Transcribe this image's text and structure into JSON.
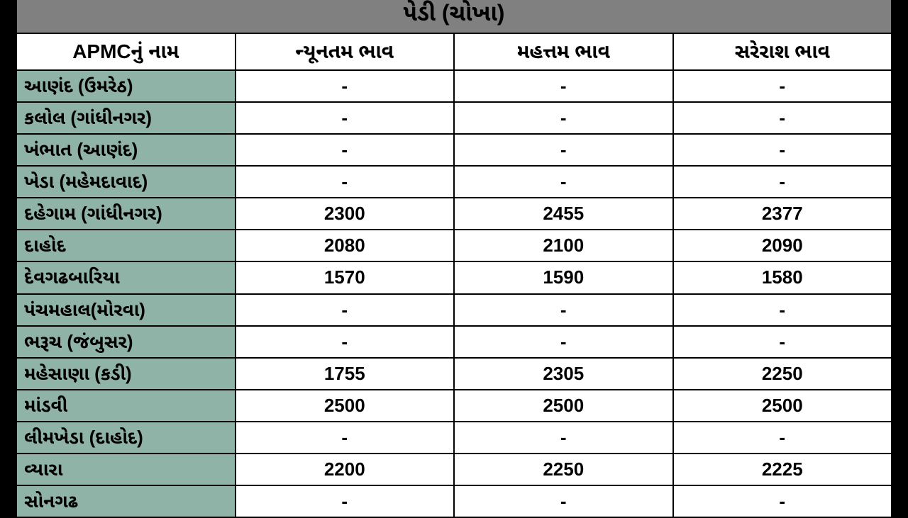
{
  "table": {
    "title": "પેડી (ચોખા)",
    "columns": [
      "APMCનું નામ",
      "ન્યૂનતમ ભાવ",
      "મહત્તમ ભાવ",
      "સરેરાશ ભાવ"
    ],
    "rows": [
      {
        "name": "આણંદ (ઉમરેઠ)",
        "min": "-",
        "max": "-",
        "avg": "-"
      },
      {
        "name": "કલોલ  (ગાંધીનગર)",
        "min": "-",
        "max": "-",
        "avg": "-"
      },
      {
        "name": "ખંભાત (આણંદ)",
        "min": "-",
        "max": "-",
        "avg": "-"
      },
      {
        "name": "ખેડા (મહેમદાવાદ)",
        "min": "-",
        "max": "-",
        "avg": "-"
      },
      {
        "name": "દહેગામ (ગાંધીનગર)",
        "min": "2300",
        "max": "2455",
        "avg": "2377"
      },
      {
        "name": "દાહોદ",
        "min": "2080",
        "max": "2100",
        "avg": "2090"
      },
      {
        "name": "દેવગઢબારિયા",
        "min": "1570",
        "max": "1590",
        "avg": "1580"
      },
      {
        "name": "પંચમહાલ(મોરવા)",
        "min": "-",
        "max": "-",
        "avg": "-"
      },
      {
        "name": "ભરૂચ (જંબુસર)",
        "min": "-",
        "max": "-",
        "avg": "-"
      },
      {
        "name": "મહેસાણા (કડી)",
        "min": "1755",
        "max": "2305",
        "avg": "2250"
      },
      {
        "name": "માંડવી",
        "min": "2500",
        "max": "2500",
        "avg": "2500"
      },
      {
        "name": "લીમખેડા (દાહોદ)",
        "min": "-",
        "max": "-",
        "avg": "-"
      },
      {
        "name": "વ્યારા",
        "min": "2200",
        "max": "2250",
        "avg": "2225"
      },
      {
        "name": "સોનગઢ",
        "min": "-",
        "max": "-",
        "avg": "-"
      }
    ],
    "styling": {
      "title_bg": "#808080",
      "title_color": "#000000",
      "title_fontsize": 32,
      "header_bg": "#ffffff",
      "header_fontsize": 28,
      "name_col_bg": "#8fb3a7",
      "value_col_bg": "#ffffff",
      "border_color": "#000000",
      "border_width": 2,
      "cell_fontsize": 26,
      "font_weight": "bold",
      "column_widths_pct": [
        34,
        22,
        22,
        22
      ],
      "text_align_name": "left",
      "text_align_value": "center",
      "page_bg": "#000000"
    }
  }
}
